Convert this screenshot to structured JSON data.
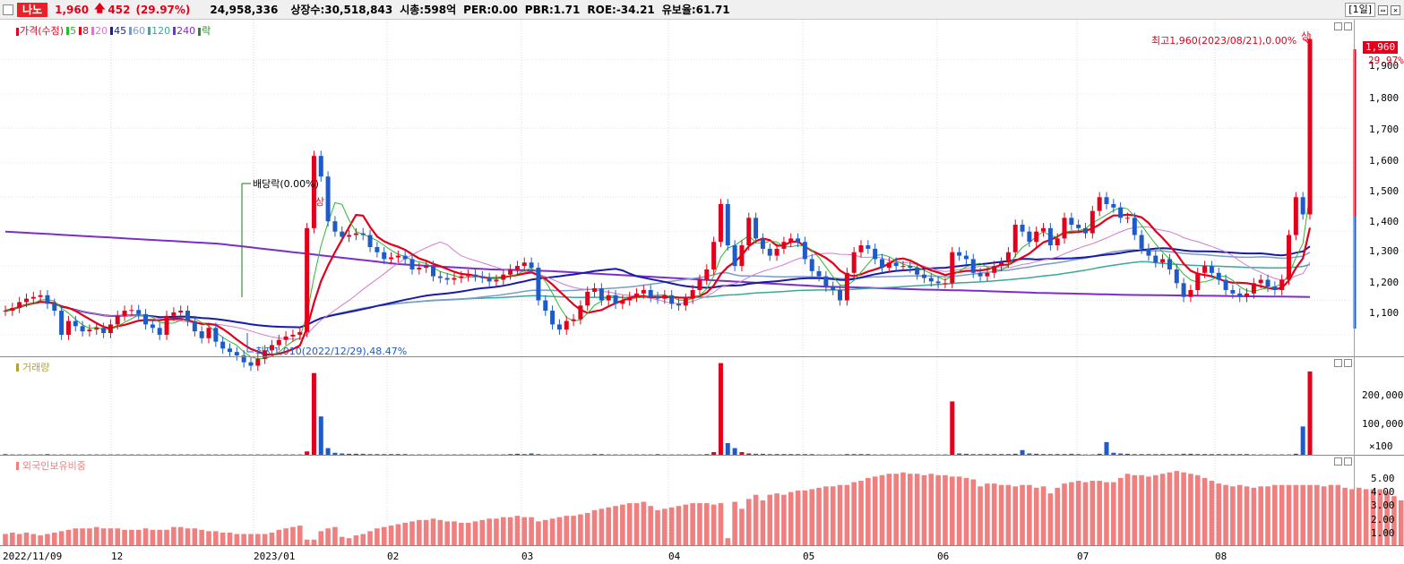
{
  "header": {
    "stock_name": "나노",
    "price": "1,960",
    "change_arrow": "up-arrow-icon",
    "change": "452",
    "change_pct": "(29.97%)",
    "volume": "24,958,336",
    "listed_shares": "상장수:30,518,843",
    "market_cap": "시총:598억",
    "per": "PER:0.00",
    "pbr": "PBR:1.71",
    "roe": "ROE:-34.21",
    "float_ratio": "유보율:61.71",
    "period_button": "[1일]"
  },
  "price_pane": {
    "legend": [
      {
        "label": "가격(수정)",
        "color": "#e3001b"
      },
      {
        "label": "5",
        "color": "#2eb82e"
      },
      {
        "label": "8",
        "color": "#e3001b"
      },
      {
        "label": "20",
        "color": "#d07ad0"
      },
      {
        "label": "45",
        "color": "#1a1aa8"
      },
      {
        "label": "60",
        "color": "#7a9cc8"
      },
      {
        "label": "120",
        "color": "#3aa89a"
      },
      {
        "label": "240",
        "color": "#7b2fc9"
      },
      {
        "label": "락",
        "color": "#2a8a2a"
      }
    ],
    "y_ticks": [
      "1,900",
      "1,800",
      "1,700",
      "1,600",
      "1,500",
      "1,400",
      "1,300",
      "1,200",
      "1,100"
    ],
    "current_price_tag": "1,960",
    "current_pct_tag": "29.97%",
    "high_annotation": "최고1,960(2023/08/21),0.00%",
    "high_marker": "상",
    "low_annotation": "최저1,010(2022/12/29),48.47%",
    "dividend_annotation": "배당락(0.00%)",
    "limit_up_marker": "상"
  },
  "volume_pane": {
    "legend": "거래량",
    "y_ticks": [
      "200,000",
      "100,000",
      "×100"
    ]
  },
  "foreign_pane": {
    "legend": "외국인보유비중",
    "y_ticks": [
      "5.00",
      "4.00",
      "3.00",
      "2.00",
      "1.00"
    ]
  },
  "x_axis": {
    "labels": [
      "2022/11/09",
      "12",
      "2023/01",
      "02",
      "03",
      "04",
      "05",
      "06",
      "07",
      "08"
    ]
  },
  "colors": {
    "up": "#e3001b",
    "down": "#1f5bc6",
    "foreign_bar": "#f08080",
    "ma240": "#7b2fc9"
  },
  "chart_data": {
    "type": "candlestick",
    "title": "나노",
    "ylim": [
      1040,
      1990
    ],
    "close_series": [
      1170,
      1178,
      1195,
      1205,
      1210,
      1215,
      1190,
      1170,
      1100,
      1140,
      1125,
      1110,
      1115,
      1120,
      1105,
      1130,
      1155,
      1170,
      1172,
      1160,
      1130,
      1120,
      1100,
      1155,
      1165,
      1170,
      1140,
      1110,
      1090,
      1120,
      1080,
      1060,
      1050,
      1040,
      1020,
      1010,
      1030,
      1055,
      1070,
      1085,
      1095,
      1100,
      1108,
      1410,
      1620,
      1560,
      1430,
      1400,
      1385,
      1390,
      1395,
      1390,
      1355,
      1340,
      1320,
      1325,
      1330,
      1320,
      1290,
      1295,
      1300,
      1270,
      1265,
      1260,
      1265,
      1270,
      1275,
      1270,
      1265,
      1255,
      1260,
      1275,
      1290,
      1300,
      1310,
      1295,
      1200,
      1170,
      1130,
      1115,
      1140,
      1145,
      1185,
      1225,
      1235,
      1200,
      1215,
      1190,
      1200,
      1210,
      1220,
      1230,
      1210,
      1205,
      1215,
      1190,
      1185,
      1205,
      1230,
      1260,
      1290,
      1370,
      1480,
      1360,
      1300,
      1360,
      1440,
      1380,
      1350,
      1330,
      1350,
      1370,
      1380,
      1370,
      1320,
      1285,
      1270,
      1240,
      1230,
      1200,
      1280,
      1340,
      1360,
      1350,
      1320,
      1295,
      1310,
      1300,
      1300,
      1295,
      1275,
      1265,
      1255,
      1250,
      1250,
      1340,
      1330,
      1320,
      1280,
      1270,
      1280,
      1300,
      1310,
      1340,
      1420,
      1400,
      1370,
      1400,
      1410,
      1360,
      1380,
      1440,
      1420,
      1410,
      1395,
      1460,
      1500,
      1480,
      1470,
      1440,
      1440,
      1390,
      1350,
      1330,
      1310,
      1320,
      1290,
      1250,
      1210,
      1230,
      1280,
      1300,
      1280,
      1260,
      1230,
      1220,
      1210,
      1220,
      1250,
      1260,
      1240,
      1230,
      1260,
      1390,
      1500,
      1450,
      1960
    ],
    "volume_series": [
      2,
      1,
      1,
      1,
      1,
      1,
      2,
      1,
      1,
      1,
      1,
      1,
      1,
      1,
      1,
      1,
      1,
      1,
      1,
      1,
      1,
      1,
      1,
      1,
      1,
      1,
      1,
      1,
      1,
      1,
      1,
      1,
      1,
      1,
      1,
      1,
      1,
      1,
      1,
      1,
      1,
      1,
      1,
      10,
      245,
      115,
      20,
      6,
      4,
      3,
      3,
      3,
      2,
      2,
      2,
      2,
      2,
      2,
      1,
      1,
      1,
      1,
      1,
      1,
      1,
      1,
      1,
      1,
      1,
      1,
      1,
      1,
      2,
      3,
      2,
      4,
      2,
      1,
      1,
      1,
      1,
      1,
      1,
      1,
      2,
      2,
      1,
      1,
      1,
      1,
      1,
      1,
      1,
      2,
      1,
      1,
      1,
      1,
      1,
      1,
      2,
      8,
      275,
      35,
      20,
      8,
      4,
      3,
      3,
      2,
      2,
      2,
      2,
      2,
      2,
      2,
      1,
      1,
      1,
      1,
      2,
      2,
      2,
      2,
      1,
      1,
      1,
      1,
      1,
      1,
      1,
      1,
      1,
      1,
      1,
      160,
      4,
      3,
      2,
      2,
      2,
      2,
      2,
      2,
      3,
      14,
      4,
      3,
      2,
      2,
      2,
      2,
      3,
      2,
      1,
      1,
      3,
      38,
      6,
      4,
      3,
      2,
      2,
      2,
      2,
      2,
      2,
      2,
      3,
      3,
      2,
      2,
      2,
      2,
      2,
      2,
      2,
      2,
      1,
      1,
      1,
      1,
      1,
      1,
      3,
      85,
      250
    ],
    "foreign_ratio_series": [
      0.8,
      0.9,
      0.8,
      0.9,
      0.8,
      0.7,
      0.8,
      0.9,
      1.0,
      1.1,
      1.2,
      1.2,
      1.2,
      1.3,
      1.2,
      1.2,
      1.2,
      1.1,
      1.1,
      1.1,
      1.2,
      1.1,
      1.1,
      1.1,
      1.3,
      1.3,
      1.2,
      1.2,
      1.1,
      1.0,
      1.0,
      0.9,
      0.9,
      0.8,
      0.8,
      0.8,
      0.8,
      0.8,
      0.9,
      1.1,
      1.2,
      1.3,
      1.4,
      0.4,
      0.4,
      1.0,
      1.2,
      1.3,
      0.6,
      0.5,
      0.7,
      0.8,
      1.0,
      1.2,
      1.3,
      1.4,
      1.5,
      1.6,
      1.7,
      1.8,
      1.8,
      1.9,
      1.8,
      1.7,
      1.7,
      1.6,
      1.6,
      1.7,
      1.8,
      1.9,
      1.9,
      2.0,
      2.0,
      2.1,
      2.0,
      2.0,
      1.7,
      1.8,
      1.9,
      2.0,
      2.1,
      2.1,
      2.2,
      2.3,
      2.5,
      2.6,
      2.7,
      2.8,
      2.9,
      3.0,
      3.0,
      3.1,
      2.8,
      2.5,
      2.6,
      2.7,
      2.8,
      2.9,
      3.0,
      3.0,
      3.0,
      2.9,
      3.0,
      0.5,
      3.1,
      2.6,
      3.3,
      3.6,
      3.2,
      3.6,
      3.7,
      3.6,
      3.8,
      3.9,
      3.9,
      4.0,
      4.1,
      4.2,
      4.2,
      4.3,
      4.3,
      4.5,
      4.6,
      4.8,
      4.9,
      5.0,
      5.1,
      5.1,
      5.2,
      5.1,
      5.1,
      5.0,
      5.1,
      5.0,
      5.0,
      4.9,
      4.9,
      4.8,
      4.7,
      4.2,
      4.4,
      4.4,
      4.3,
      4.3,
      4.2,
      4.3,
      4.3,
      4.1,
      4.2,
      3.7,
      4.1,
      4.4,
      4.5,
      4.6,
      4.5,
      4.6,
      4.6,
      4.5,
      4.5,
      4.8,
      5.1,
      5.0,
      5.0,
      4.9,
      5.0,
      5.1,
      5.2,
      5.3,
      5.2,
      5.1,
      5.0,
      4.8,
      4.6,
      4.4,
      4.3,
      4.2,
      4.3,
      4.2,
      4.1,
      4.2,
      4.2,
      4.3,
      4.3,
      4.3,
      4.3,
      4.3,
      4.3,
      4.3,
      4.2,
      4.3,
      4.3,
      4.1,
      4.0,
      4.1,
      4.0,
      4.0,
      4.0,
      3.8,
      3.5,
      3.2,
      3.2
    ],
    "ma240_series": [
      1400,
      1395,
      1390,
      1385,
      1380,
      1375,
      1370,
      1365,
      1355,
      1345,
      1335,
      1325,
      1315,
      1305,
      1300,
      1295,
      1290,
      1288,
      1285,
      1280,
      1275,
      1270,
      1265,
      1260,
      1255,
      1250,
      1245,
      1240,
      1238,
      1235,
      1232,
      1230,
      1228,
      1225,
      1222,
      1220,
      1218,
      1216,
      1215,
      1214,
      1213,
      1212,
      1211,
      1210
    ]
  }
}
